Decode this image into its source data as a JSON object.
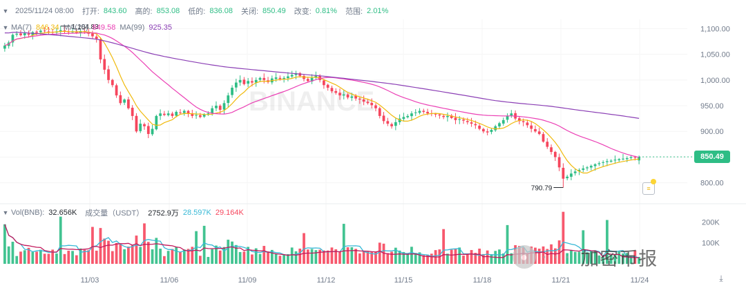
{
  "header": {
    "datetime": "2025/11/24 08:00",
    "open_label": "打开:",
    "open": "843.60",
    "high_label": "高的:",
    "high": "853.08",
    "low_label": "低的:",
    "low": "836.08",
    "close_label": "关闭:",
    "close": "850.49",
    "change_label": "改变:",
    "change": "0.81%",
    "range_label": "范围:",
    "range": "2.01%"
  },
  "ma_legend": {
    "ma7_label": "MA(7)",
    "ma7_value": "846.34",
    "ma25_label": "MA(25)",
    "ma25_value": "849.58",
    "ma99_label": "MA(99)",
    "ma99_value": "925.35"
  },
  "vol_legend": {
    "label": "Vol(BNB):",
    "value": "32.656K",
    "quote_label": "成交量（USDT）",
    "quote_value": "2752.9万",
    "ma1_value": "28.597K",
    "ma2_value": "29.164K"
  },
  "current_price": "850.49",
  "high_marker": "1,104.83",
  "low_marker": "790.79",
  "watermark_text": "加密币报",
  "colors": {
    "up": "#2ebd85",
    "down": "#f6465d",
    "ma7": "#f0b90b",
    "ma25": "#eb40b5",
    "ma99": "#8b3fb5",
    "vol_ma1": "#36b8d6",
    "vol_ma2": "#c2185b"
  },
  "chart_data": {
    "type": "candlestick",
    "symbol": "BNB",
    "interval_note": "candles approx. 8h",
    "price_axis": {
      "ticks": [
        "1,100.00",
        "1,050.00",
        "1,000.00",
        "950.00",
        "900.00",
        "850.00",
        "800.00"
      ],
      "ylim": [
        770,
        1118
      ]
    },
    "volume_axis": {
      "ticks": [
        "200K",
        "100K"
      ],
      "ylim": [
        0,
        270
      ]
    },
    "x_ticks": [
      "11/03",
      "11/06",
      "11/09",
      "11/12",
      "11/15",
      "11/18",
      "11/21",
      "11/24"
    ],
    "candles_close": [
      1067,
      1073,
      1088,
      1090,
      1087,
      1091,
      1088,
      1093,
      1092,
      1096,
      1095,
      1094,
      1093,
      1094,
      1097,
      1095,
      1093,
      1094,
      1092,
      1095,
      1094,
      1090,
      1085,
      1080,
      1040,
      1020,
      1000,
      990,
      970,
      955,
      962,
      945,
      930,
      900,
      915,
      910,
      895,
      905,
      930,
      935,
      932,
      935,
      930,
      938,
      936,
      940,
      935,
      930,
      932,
      928,
      933,
      935,
      945,
      950,
      942,
      955,
      970,
      985,
      995,
      1000,
      992,
      998,
      995,
      1000,
      1004,
      1000,
      996,
      1003,
      1005,
      1002,
      1004,
      1007,
      1010,
      1013,
      1008,
      1002,
      998,
      1004,
      1008,
      1000,
      990,
      985,
      978,
      975,
      970,
      972,
      966,
      968,
      964,
      962,
      958,
      955,
      951,
      945,
      930,
      920,
      915,
      910,
      918,
      925,
      928,
      930,
      935,
      937,
      940,
      938,
      935,
      935,
      933,
      931,
      928,
      930,
      926,
      922,
      924,
      921,
      918,
      915,
      912,
      905,
      900,
      898,
      903,
      910,
      916,
      922,
      930,
      935,
      925,
      920,
      918,
      912,
      905,
      900,
      895,
      880,
      870,
      860,
      850,
      830,
      808,
      812,
      818,
      822,
      825,
      828,
      830,
      833,
      836,
      838,
      840,
      842,
      843,
      845,
      846,
      847,
      848,
      850,
      849,
      850
    ],
    "ma7_end": 846.34,
    "ma25_end": 849.58,
    "ma99_end": 925.35,
    "high": 1104.83,
    "low": 790.79,
    "last": {
      "open": 843.6,
      "high": 853.08,
      "low": 836.08,
      "close": 850.49
    },
    "volume_last_k": 32.656,
    "volume_ma_k": [
      28.597,
      29.164
    ]
  }
}
